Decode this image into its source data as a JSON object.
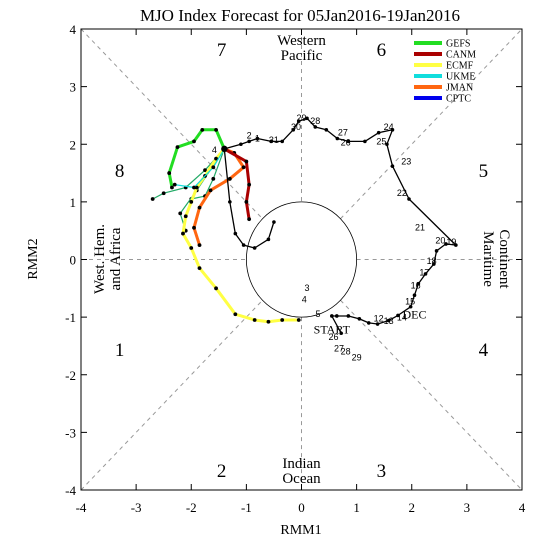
{
  "chart_data": {
    "type": "line",
    "title": "MJO Index Forecast for 05Jan2016-19Jan2016",
    "xlabel": "RMM1",
    "ylabel": "RMM2",
    "xlim": [
      -4,
      4
    ],
    "ylim": [
      -4,
      4
    ],
    "xticks": [
      "-4",
      "-3",
      "-2",
      "-1",
      "0",
      "1",
      "2",
      "3",
      "4"
    ],
    "yticks": [
      "-4",
      "-3",
      "-2",
      "-1",
      "0",
      "1",
      "2",
      "3",
      "4"
    ],
    "phases": [
      "1",
      "2",
      "3",
      "4",
      "5",
      "6",
      "7",
      "8"
    ],
    "regions": {
      "top": [
        "Western",
        "Pacific"
      ],
      "bottom": [
        "Indian",
        "Ocean"
      ],
      "left": [
        "West. Hem.",
        "and Africa"
      ],
      "right": [
        "Maritime",
        "Continent"
      ]
    },
    "observed_labels": {
      "start": "START",
      "dec": "DEC"
    },
    "colors": {
      "observed": "#000000",
      "GEFS": "#22dd22",
      "CANM": "#aa0000",
      "ECMF": "#ffff44",
      "UKME": "#11dddd",
      "JMAN": "#ff6611",
      "CPTC": "#0000ee",
      "ensemble": "#22aa66",
      "guides": "#999999"
    },
    "legend": [
      "GEFS",
      "CANM",
      "ECMF",
      "UKME",
      "JMAN",
      "CPTC"
    ],
    "observed": {
      "points": [
        [
          0.72,
          -1.28
        ],
        [
          0.55,
          -0.98
        ],
        [
          0.64,
          -0.98
        ],
        [
          0.85,
          -0.98
        ],
        [
          1.05,
          -1.03
        ],
        [
          1.22,
          -1.1
        ],
        [
          1.38,
          -1.12
        ],
        [
          1.58,
          -1.06
        ],
        [
          1.75,
          -0.97
        ],
        [
          1.98,
          -0.82
        ],
        [
          2.05,
          -0.62
        ],
        [
          2.12,
          -0.42
        ],
        [
          2.25,
          -0.25
        ],
        [
          2.4,
          -0.08
        ],
        [
          2.45,
          0.15
        ],
        [
          2.62,
          0.27
        ],
        [
          2.8,
          0.25
        ],
        [
          1.95,
          1.05
        ],
        [
          1.65,
          1.62
        ],
        [
          1.55,
          2.0
        ],
        [
          1.65,
          2.25
        ],
        [
          1.4,
          2.2
        ],
        [
          1.15,
          2.05
        ],
        [
          0.85,
          2.05
        ],
        [
          0.65,
          2.1
        ],
        [
          0.45,
          2.25
        ],
        [
          0.25,
          2.3
        ],
        [
          0.1,
          2.45
        ],
        [
          -0.05,
          2.4
        ],
        [
          -0.15,
          2.25
        ],
        [
          -0.35,
          2.05
        ],
        [
          -0.55,
          2.05
        ],
        [
          -0.8,
          2.1
        ],
        [
          -0.95,
          2.05
        ],
        [
          -1.1,
          2.0
        ],
        [
          -1.4,
          1.92
        ],
        [
          -1.3,
          1.0
        ],
        [
          -1.2,
          0.45
        ],
        [
          -1.05,
          0.25
        ],
        [
          -0.85,
          0.2
        ],
        [
          -0.6,
          0.35
        ],
        [
          -0.5,
          0.65
        ]
      ],
      "labels": [
        {
          "text": "START",
          "x": 0.55,
          "y": -1.28
        },
        {
          "text": "DEC",
          "x": 2.05,
          "y": -1.02
        },
        {
          "text": "29",
          "x": 1.0,
          "y": -1.75
        },
        {
          "text": "28",
          "x": 0.8,
          "y": -1.65
        },
        {
          "text": "27",
          "x": 0.68,
          "y": -1.6
        },
        {
          "text": "26",
          "x": 0.58,
          "y": -1.4
        },
        {
          "text": "3",
          "x": 0.1,
          "y": -0.55
        },
        {
          "text": "4",
          "x": 0.05,
          "y": -0.75
        },
        {
          "text": "5",
          "x": 0.3,
          "y": -1.0
        },
        {
          "text": "12",
          "x": 1.4,
          "y": -1.08
        },
        {
          "text": "13",
          "x": 1.58,
          "y": -1.12
        },
        {
          "text": "14",
          "x": 1.82,
          "y": -1.06
        },
        {
          "text": "15",
          "x": 1.97,
          "y": -0.78
        },
        {
          "text": "16",
          "x": 2.07,
          "y": -0.5
        },
        {
          "text": "17",
          "x": 2.23,
          "y": -0.28
        },
        {
          "text": "18",
          "x": 2.36,
          "y": -0.08
        },
        {
          "text": "19",
          "x": 2.72,
          "y": 0.25
        },
        {
          "text": "20",
          "x": 2.52,
          "y": 0.28
        },
        {
          "text": "21",
          "x": 2.15,
          "y": 0.5
        },
        {
          "text": "22",
          "x": 1.82,
          "y": 1.1
        },
        {
          "text": "23",
          "x": 1.9,
          "y": 1.65
        },
        {
          "text": "24",
          "x": 1.58,
          "y": 2.25
        },
        {
          "text": "25",
          "x": 1.45,
          "y": 2.0
        },
        {
          "text": "26",
          "x": 0.8,
          "y": 1.98
        },
        {
          "text": "27",
          "x": 0.75,
          "y": 2.15
        },
        {
          "text": "28",
          "x": 0.25,
          "y": 2.35
        },
        {
          "text": "29",
          "x": 0.0,
          "y": 2.4
        },
        {
          "text": "30",
          "x": -0.1,
          "y": 2.25
        },
        {
          "text": "31",
          "x": -0.5,
          "y": 2.02
        },
        {
          "text": "1",
          "x": -0.8,
          "y": 2.05
        },
        {
          "text": "2",
          "x": -0.95,
          "y": 2.1
        },
        {
          "text": "4",
          "x": -1.58,
          "y": 1.85
        }
      ]
    },
    "series": [
      {
        "name": "ECMF",
        "points": [
          [
            -1.4,
            1.92
          ],
          [
            -1.55,
            1.75
          ],
          [
            -1.75,
            1.45
          ],
          [
            -1.9,
            1.25
          ],
          [
            -2.0,
            1.0
          ],
          [
            -2.1,
            0.75
          ],
          [
            -2.15,
            0.45
          ],
          [
            -2.0,
            0.2
          ],
          [
            -1.85,
            -0.15
          ],
          [
            -1.55,
            -0.5
          ],
          [
            -1.2,
            -0.95
          ],
          [
            -0.85,
            -1.05
          ],
          [
            -0.6,
            -1.08
          ],
          [
            -0.35,
            -1.05
          ],
          [
            -0.05,
            -1.05
          ]
        ]
      },
      {
        "name": "JMAN",
        "points": [
          [
            -1.4,
            1.92
          ],
          [
            -1.22,
            1.85
          ],
          [
            -1.05,
            1.6
          ],
          [
            -1.3,
            1.4
          ],
          [
            -1.65,
            1.2
          ],
          [
            -1.85,
            0.9
          ],
          [
            -1.95,
            0.55
          ],
          [
            -1.85,
            0.25
          ]
        ]
      },
      {
        "name": "CANM",
        "points": [
          [
            -1.4,
            1.92
          ],
          [
            -1.0,
            1.7
          ],
          [
            -0.95,
            1.3
          ],
          [
            -1.0,
            1.0
          ],
          [
            -0.95,
            0.7
          ]
        ]
      },
      {
        "name": "GEFS",
        "points": [
          [
            -1.4,
            1.92
          ],
          [
            -1.55,
            2.25
          ],
          [
            -1.8,
            2.25
          ],
          [
            -1.95,
            2.05
          ],
          [
            -2.25,
            1.95
          ],
          [
            -2.4,
            1.5
          ],
          [
            -2.35,
            1.25
          ]
        ]
      },
      {
        "name": "UKME",
        "points": [
          [
            -1.4,
            1.92
          ],
          [
            -1.6,
            1.6
          ],
          [
            -1.95,
            1.25
          ],
          [
            -2.3,
            1.3
          ]
        ]
      },
      {
        "name": "ensemble",
        "points": [
          [
            -1.4,
            1.92
          ],
          [
            -1.75,
            1.55
          ],
          [
            -2.1,
            1.25
          ],
          [
            -2.5,
            1.15
          ],
          [
            -2.7,
            1.05
          ]
        ]
      },
      {
        "name": "ensemble",
        "points": [
          [
            -1.4,
            1.92
          ],
          [
            -1.6,
            1.4
          ],
          [
            -1.75,
            1.1
          ],
          [
            -2.0,
            1.05
          ]
        ]
      },
      {
        "name": "ensemble",
        "points": [
          [
            -1.4,
            1.92
          ],
          [
            -1.9,
            1.2
          ],
          [
            -2.2,
            0.8
          ],
          [
            -2.1,
            0.5
          ]
        ]
      }
    ]
  }
}
